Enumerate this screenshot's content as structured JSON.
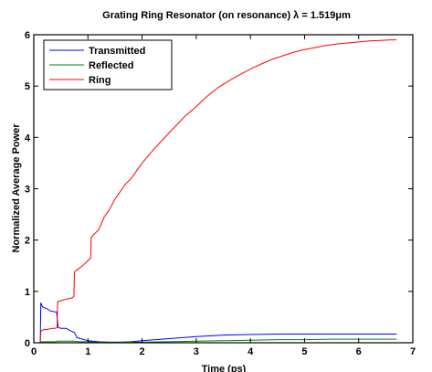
{
  "chart_data": {
    "type": "line",
    "title": "Grating Ring Resonator (on resonance) λ = 1.519μm",
    "xlabel": "Time (ps)",
    "ylabel": "Normalized Average Power",
    "xlim": [
      0,
      7
    ],
    "ylim": [
      0,
      6
    ],
    "xticks": [
      "0",
      "1",
      "2",
      "3",
      "4",
      "5",
      "6",
      "7"
    ],
    "yticks": [
      "0",
      "1",
      "2",
      "3",
      "4",
      "5",
      "6"
    ],
    "grid": false,
    "legend_position": "top-left",
    "series": [
      {
        "name": "Transmitted",
        "color": "#0000ff",
        "x": [
          0,
          0.12,
          0.13,
          0.16,
          0.2,
          0.25,
          0.3,
          0.4,
          0.42,
          0.45,
          0.5,
          0.6,
          0.65,
          0.7,
          0.75,
          0.8,
          1.0,
          1.2,
          1.4,
          1.6,
          1.8,
          2.0,
          2.5,
          3.0,
          3.5,
          4.0,
          4.5,
          5.0,
          5.5,
          6.0,
          6.5,
          6.7
        ],
        "values": [
          0,
          0,
          0.78,
          0.7,
          0.68,
          0.66,
          0.62,
          0.6,
          0.6,
          0.3,
          0.28,
          0.28,
          0.25,
          0.22,
          0.2,
          0.1,
          0.04,
          0.02,
          0.01,
          0.01,
          0.02,
          0.04,
          0.08,
          0.12,
          0.15,
          0.16,
          0.17,
          0.17,
          0.17,
          0.17,
          0.17,
          0.17
        ]
      },
      {
        "name": "Reflected",
        "color": "#008000",
        "x": [
          0,
          0.12,
          0.15,
          0.2,
          0.3,
          0.4,
          0.45,
          0.6,
          0.75,
          0.85,
          1.0,
          1.2,
          1.5,
          2.0,
          2.5,
          3.0,
          3.5,
          4.0,
          4.5,
          5.0,
          5.5,
          6.0,
          6.5,
          6.7
        ],
        "values": [
          0,
          0,
          0.02,
          0.02,
          0.02,
          0.02,
          0.03,
          0.03,
          0.03,
          0.02,
          0.02,
          0.01,
          0.01,
          0.01,
          0.02,
          0.03,
          0.04,
          0.05,
          0.06,
          0.06,
          0.07,
          0.07,
          0.07,
          0.07
        ]
      },
      {
        "name": "Ring",
        "color": "#ff0000",
        "x": [
          0,
          0.12,
          0.13,
          0.15,
          0.2,
          0.25,
          0.3,
          0.35,
          0.4,
          0.43,
          0.44,
          0.5,
          0.6,
          0.7,
          0.74,
          0.75,
          0.8,
          0.9,
          1.0,
          1.05,
          1.06,
          1.1,
          1.2,
          1.3,
          1.4,
          1.5,
          1.6,
          1.7,
          1.8,
          1.9,
          2.0,
          2.2,
          2.4,
          2.6,
          2.8,
          3.0,
          3.2,
          3.4,
          3.6,
          3.8,
          4.0,
          4.2,
          4.4,
          4.6,
          4.8,
          5.0,
          5.2,
          5.4,
          5.6,
          5.8,
          6.0,
          6.2,
          6.4,
          6.6,
          6.7
        ],
        "values": [
          0,
          0,
          0.22,
          0.24,
          0.26,
          0.26,
          0.27,
          0.28,
          0.28,
          0.3,
          0.8,
          0.82,
          0.85,
          0.87,
          0.9,
          1.38,
          1.42,
          1.5,
          1.6,
          1.65,
          2.05,
          2.1,
          2.2,
          2.45,
          2.6,
          2.8,
          2.95,
          3.1,
          3.2,
          3.35,
          3.5,
          3.75,
          3.98,
          4.2,
          4.42,
          4.6,
          4.8,
          4.97,
          5.1,
          5.22,
          5.33,
          5.43,
          5.52,
          5.59,
          5.66,
          5.71,
          5.75,
          5.79,
          5.82,
          5.84,
          5.86,
          5.88,
          5.89,
          5.9,
          5.9
        ]
      }
    ]
  }
}
